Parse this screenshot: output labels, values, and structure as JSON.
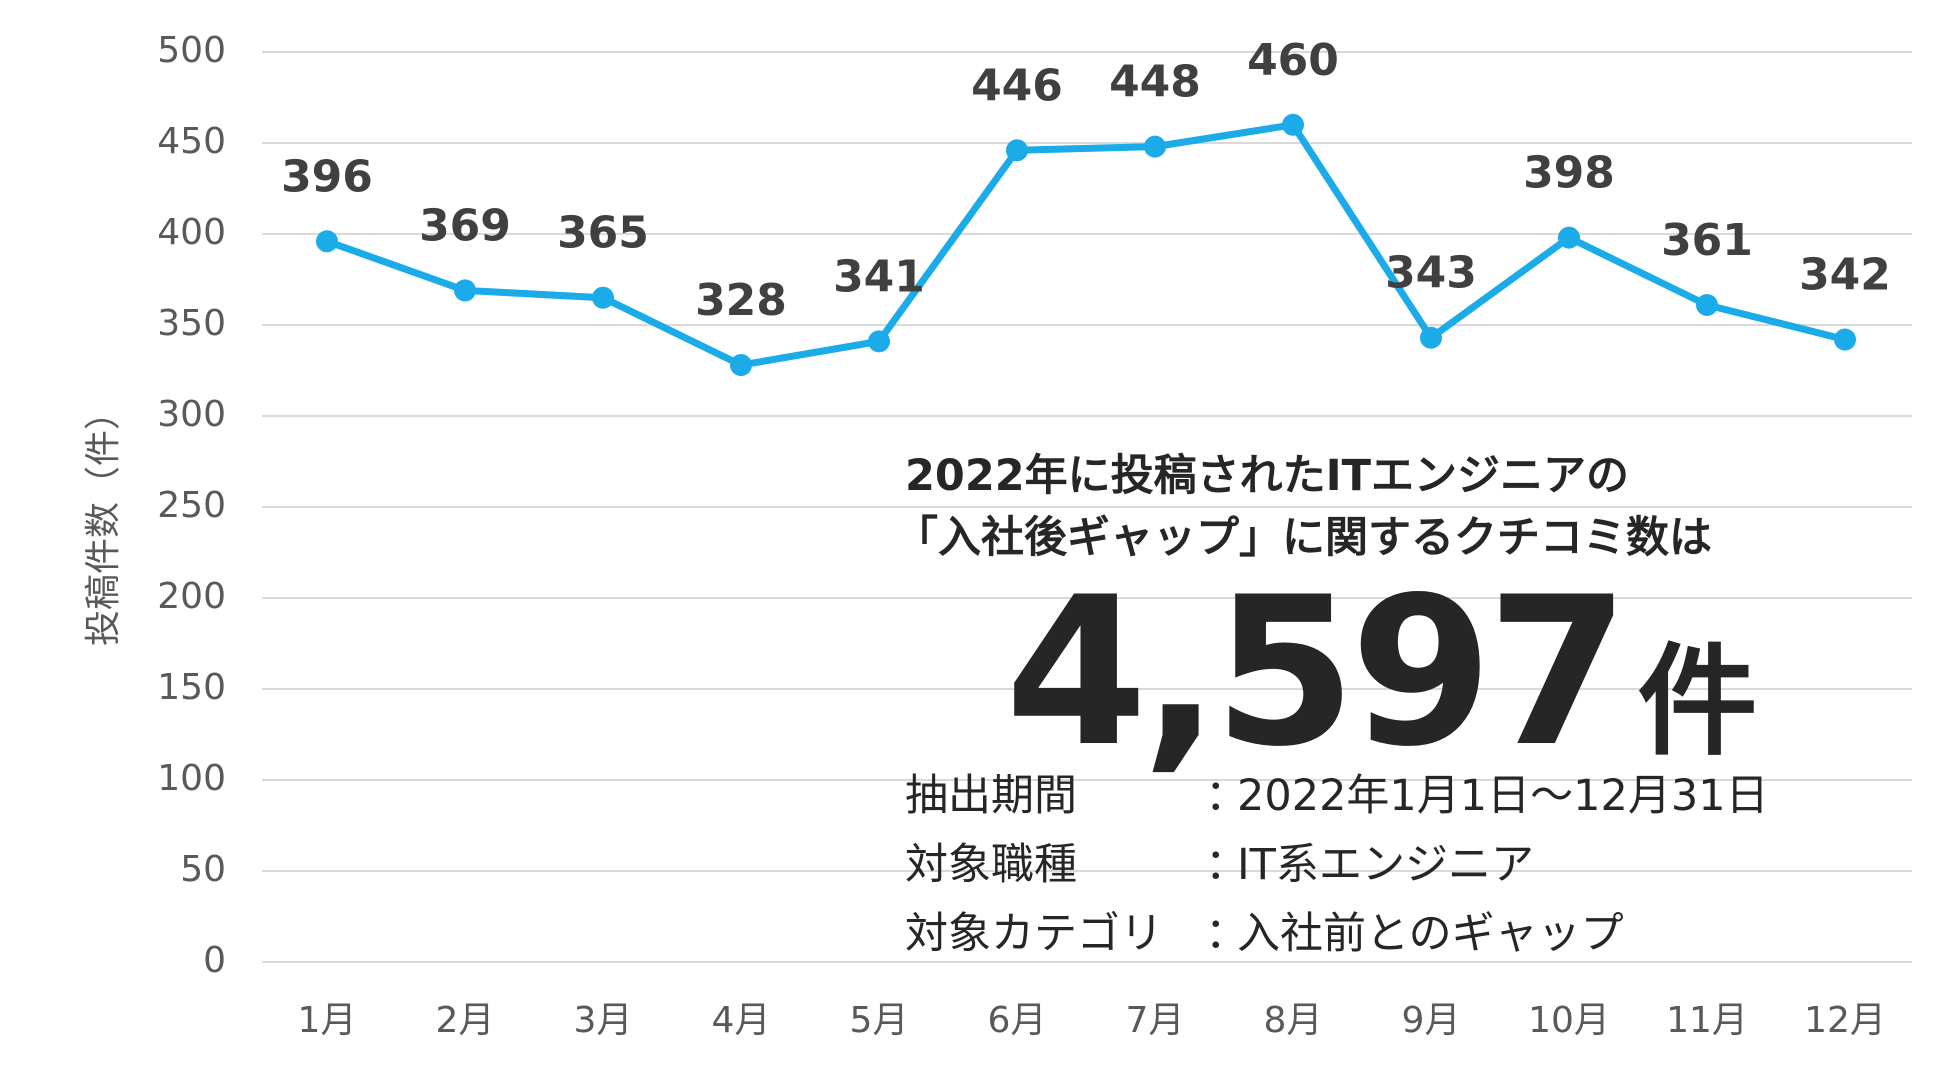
{
  "chart_data": {
    "type": "line",
    "categories": [
      "1月",
      "2月",
      "3月",
      "4月",
      "5月",
      "6月",
      "7月",
      "8月",
      "9月",
      "10月",
      "11月",
      "12月"
    ],
    "series": [
      {
        "values": [
          396,
          369,
          365,
          328,
          341,
          446,
          448,
          460,
          343,
          398,
          361,
          342
        ],
        "color": "#1AABE8"
      }
    ],
    "ylabel": "投稿件数（件）",
    "ylim": [
      0,
      500
    ],
    "yticks": [
      0,
      50,
      100,
      150,
      200,
      250,
      300,
      350,
      400,
      450,
      500
    ],
    "grid": true,
    "data_labels": true
  },
  "summary": {
    "headline_line1": "2022年に投稿されたITエンジニアの",
    "headline_line2": "「入社後ギャップ」に関するクチコミ数は",
    "total_number": "4,597",
    "total_unit": "件",
    "details": [
      {
        "key": "抽出期間",
        "sep": "：",
        "value": "2022年1月1日～12月31日"
      },
      {
        "key": "対象職種",
        "sep": "：",
        "value": "IT系エンジニア"
      },
      {
        "key": "対象カテゴリ",
        "sep": "：",
        "value": "入社前とのギャップ"
      }
    ]
  },
  "colors": {
    "line": "#1AABE8",
    "grid": "#D9D9D9",
    "axis_text": "#595959",
    "label_text": "#404040",
    "summary_text": "#262626"
  }
}
